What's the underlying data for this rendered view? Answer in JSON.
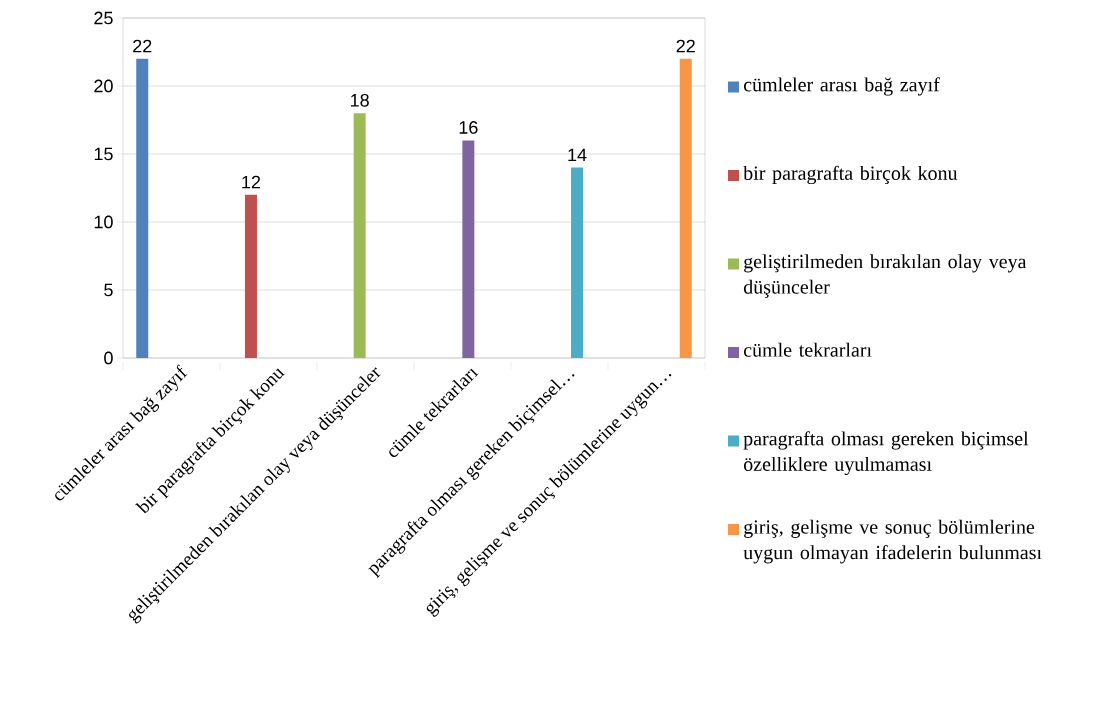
{
  "chart_data": {
    "type": "bar",
    "categories": [
      "cümleler arası bağ zayıf",
      "bir paragrafta birçok konu",
      "geliştirilmeden bırakılan olay veya düşünceler",
      "cümle tekrarları",
      "paragrafta olması gereken biçimsel…",
      "giriş, gelişme ve sonuç bölümlerine uygun…"
    ],
    "series": [
      {
        "name": "cümleler arası bağ zayıf",
        "color": "#4f81bd",
        "values": [
          22,
          null,
          null,
          null,
          null,
          null
        ]
      },
      {
        "name": "bir paragrafta birçok konu",
        "color": "#c0504d",
        "values": [
          null,
          12,
          null,
          null,
          null,
          null
        ]
      },
      {
        "name": "geliştirilmeden bırakılan olay veya düşünceler",
        "color": "#9bbb59",
        "values": [
          null,
          null,
          18,
          null,
          null,
          null
        ]
      },
      {
        "name": "cümle tekrarları",
        "color": "#8064a2",
        "values": [
          null,
          null,
          null,
          16,
          null,
          null
        ]
      },
      {
        "name": "paragrafta olması gereken biçimsel özelliklere uyulmaması",
        "color": "#4bacc6",
        "values": [
          null,
          null,
          null,
          null,
          14,
          null
        ]
      },
      {
        "name": "giriş, gelişme ve sonuç bölümlerine uygun olmayan ifadelerin bulunması",
        "color": "#f79646",
        "values": [
          null,
          null,
          null,
          null,
          null,
          22
        ]
      }
    ],
    "ylim": [
      0,
      25
    ],
    "yticks": [
      0,
      5,
      10,
      15,
      20,
      25
    ],
    "grid": "y",
    "legend": "right",
    "data_labels": true
  }
}
